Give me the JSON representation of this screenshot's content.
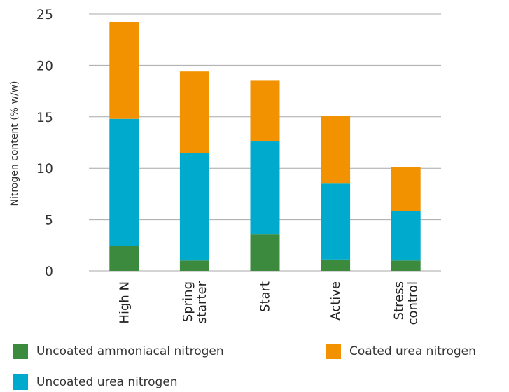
{
  "chart_data": {
    "type": "bar",
    "stacked": true,
    "categories": [
      "High N",
      "Spring starter",
      "Start",
      "Active",
      "Stress control"
    ],
    "category_lines": [
      [
        "High N"
      ],
      [
        "Spring",
        "starter"
      ],
      [
        "Start"
      ],
      [
        "Active"
      ],
      [
        "Stress",
        "control"
      ]
    ],
    "series": [
      {
        "name": "Uncoated ammoniacal nitrogen",
        "color": "#3b8a3e",
        "values": [
          2.4,
          1.0,
          3.6,
          1.1,
          1.0
        ]
      },
      {
        "name": "Uncoated urea nitrogen",
        "color": "#00aacc",
        "values": [
          12.4,
          10.5,
          9.0,
          7.4,
          4.8
        ]
      },
      {
        "name": "Coated urea nitrogen",
        "color": "#f29200",
        "values": [
          9.4,
          7.9,
          5.9,
          6.6,
          4.3
        ]
      }
    ],
    "ylabel": "Nitrogen content (% w/w)",
    "xlabel": "",
    "ylim": [
      0,
      25
    ],
    "yticks": [
      0,
      5,
      10,
      15,
      20,
      25
    ],
    "grid": true,
    "legend_position": "bottom"
  }
}
